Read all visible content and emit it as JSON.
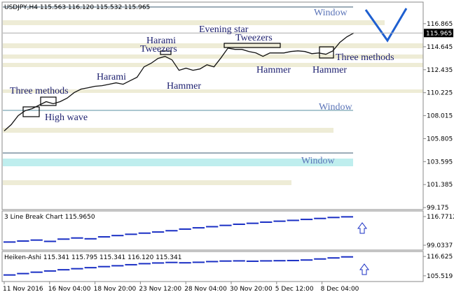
{
  "chart_data": [
    {
      "type": "line",
      "title": "USDJPY,H4  115.563 116.120 115.532 115.965",
      "color": "#111111",
      "current_price": 115.965,
      "values": [
        106.55,
        107.15,
        108.02,
        108.49,
        108.69,
        109.03,
        109.36,
        109.16,
        109.36,
        109.7,
        110.23,
        110.57,
        110.7,
        110.84,
        110.9,
        111.04,
        111.17,
        111.04,
        111.37,
        111.71,
        112.71,
        113.05,
        113.52,
        113.72,
        113.38,
        112.38,
        112.58,
        112.38,
        112.51,
        112.91,
        112.71,
        113.58,
        114.52,
        114.39,
        114.39,
        114.19,
        114.05,
        113.72,
        114.05,
        114.05,
        114.05,
        114.19,
        114.25,
        114.19,
        113.98,
        114.05,
        113.92,
        114.25,
        115.06,
        115.59,
        115.97
      ],
      "ylim": [
        98.98,
        118.94
      ],
      "yticks": [
        116.865,
        114.645,
        112.435,
        110.225,
        108.015,
        105.805,
        103.595,
        101.385,
        99.175
      ],
      "x_labels": [
        "11 Nov 2016",
        "16 Nov 04:00",
        "18 Nov 20:00",
        "23 Nov 12:00",
        "28 Nov 04:00",
        "30 Nov 20:00",
        "5 Dec 12:00",
        "8 Dec 04:00"
      ],
      "annotations": [
        "Window",
        "Evening star",
        "Tweezers",
        "Harami",
        "Tweezers",
        "Harami",
        "Hammer",
        "Hammer",
        "Hammer",
        "Three methods",
        "Three methods",
        "High wave",
        "Window",
        "Window"
      ]
    },
    {
      "type": "bar",
      "title": "3 Line Break Chart 115.9650",
      "color": "#1a2fc4",
      "values": [
        101.0,
        101.6,
        102.2,
        101.4,
        102.8,
        103.5,
        103.0,
        104.2,
        105.0,
        105.8,
        106.5,
        107.2,
        108.0,
        109.0,
        109.8,
        110.5,
        111.3,
        112.0,
        112.6,
        113.3,
        113.9,
        114.4,
        115.0,
        115.6,
        116.2,
        116.6
      ],
      "ylim": [
        96.0,
        120.23
      ],
      "yticks": [
        116.7712,
        99.0337
      ]
    },
    {
      "type": "bar",
      "title": "Heiken-Ashi 115.341 115.795 115.341 116.120 115.341",
      "color": "#1a2fc4",
      "values": [
        106.0,
        106.8,
        107.6,
        108.3,
        109.0,
        109.6,
        110.2,
        110.8,
        111.3,
        111.9,
        112.5,
        112.9,
        113.2,
        113.0,
        113.3,
        113.7,
        114.0,
        114.1,
        113.9,
        114.1,
        114.2,
        114.3,
        114.6,
        115.2,
        115.8,
        116.4
      ],
      "ylim": [
        102.23,
        119.5
      ],
      "yticks": [
        116.625,
        105.519
      ]
    }
  ]
}
